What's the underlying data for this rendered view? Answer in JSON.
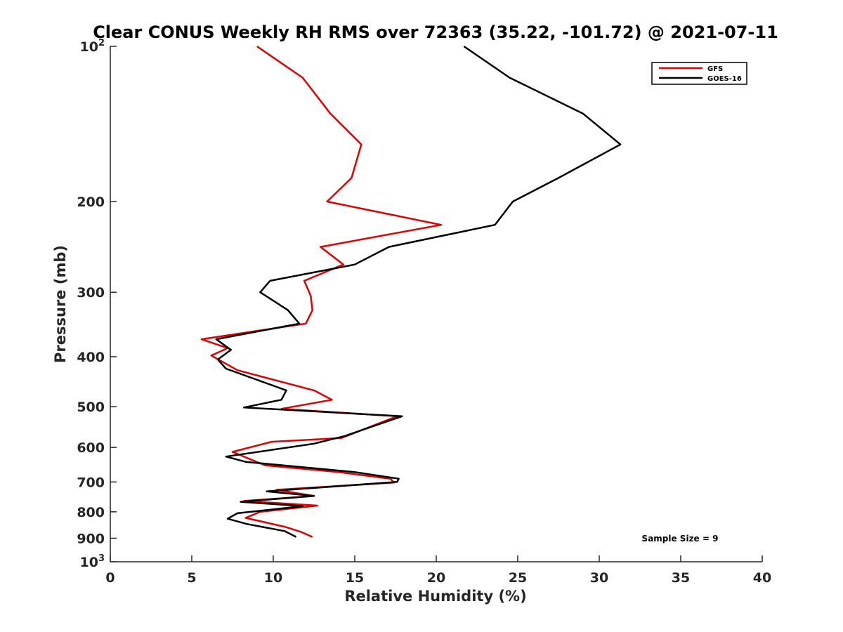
{
  "chart_data": {
    "type": "line",
    "title": "Clear CONUS Weekly RH RMS over 72363 (35.22, -101.72) @ 2021-07-11",
    "xlabel": "Relative Humidity (%)",
    "ylabel": "Pressure (mb)",
    "xlim": [
      0,
      40
    ],
    "ylim": [
      100,
      1000
    ],
    "y_scale": "log",
    "y_reversed": true,
    "x_ticks": [
      0,
      5,
      10,
      15,
      20,
      25,
      30,
      35,
      40
    ],
    "x_tick_labels": [
      "0",
      "5",
      "10",
      "15",
      "20",
      "25",
      "30",
      "35",
      "40"
    ],
    "y_ticks": [
      100,
      200,
      300,
      400,
      500,
      600,
      700,
      800,
      900,
      1000
    ],
    "y_tick_labels": [
      {
        "base": "10",
        "sup": "2"
      },
      {
        "base": "200",
        "sup": ""
      },
      {
        "base": "300",
        "sup": ""
      },
      {
        "base": "400",
        "sup": ""
      },
      {
        "base": "500",
        "sup": ""
      },
      {
        "base": "600",
        "sup": ""
      },
      {
        "base": "700",
        "sup": ""
      },
      {
        "base": "800",
        "sup": ""
      },
      {
        "base": "900",
        "sup": ""
      },
      {
        "base": "10",
        "sup": "3"
      }
    ],
    "grid": false,
    "legend_position": "top-right",
    "annotation": "Sample Size = 9",
    "series": [
      {
        "name": "GFS",
        "color": "#e00000",
        "points": [
          [
            9.0,
            100
          ],
          [
            11.8,
            115
          ],
          [
            13.5,
            135
          ],
          [
            15.4,
            155
          ],
          [
            14.8,
            180
          ],
          [
            13.3,
            200
          ],
          [
            20.3,
            222
          ],
          [
            12.9,
            245
          ],
          [
            14.3,
            265
          ],
          [
            11.9,
            285
          ],
          [
            12.3,
            305
          ],
          [
            12.4,
            325
          ],
          [
            12.0,
            345
          ],
          [
            5.6,
            370
          ],
          [
            7.2,
            385
          ],
          [
            6.2,
            398
          ],
          [
            7.8,
            425
          ],
          [
            12.5,
            465
          ],
          [
            13.6,
            485
          ],
          [
            10.5,
            505
          ],
          [
            17.6,
            522
          ],
          [
            14.2,
            575
          ],
          [
            13.0,
            578
          ],
          [
            9.9,
            585
          ],
          [
            7.5,
            612
          ],
          [
            9.5,
            650
          ],
          [
            14.0,
            670
          ],
          [
            17.2,
            690
          ],
          [
            17.4,
            702
          ],
          [
            10.2,
            725
          ],
          [
            12.5,
            745
          ],
          [
            8.2,
            762
          ],
          [
            12.7,
            778
          ],
          [
            9.2,
            800
          ],
          [
            8.3,
            822
          ],
          [
            10.7,
            855
          ],
          [
            11.7,
            875
          ],
          [
            12.4,
            895
          ]
        ]
      },
      {
        "name": "GOES-16",
        "color": "#000000",
        "points": [
          [
            21.7,
            100
          ],
          [
            24.5,
            115
          ],
          [
            29.0,
            135
          ],
          [
            31.3,
            155
          ],
          [
            27.5,
            180
          ],
          [
            24.7,
            200
          ],
          [
            23.6,
            222
          ],
          [
            17.1,
            245
          ],
          [
            15.0,
            265
          ],
          [
            9.8,
            285
          ],
          [
            9.2,
            300
          ],
          [
            10.9,
            325
          ],
          [
            11.6,
            345
          ],
          [
            6.5,
            370
          ],
          [
            7.4,
            388
          ],
          [
            6.6,
            405
          ],
          [
            7.1,
            422
          ],
          [
            10.8,
            465
          ],
          [
            10.5,
            485
          ],
          [
            8.2,
            502
          ],
          [
            17.9,
            522
          ],
          [
            14.4,
            570
          ],
          [
            12.5,
            590
          ],
          [
            7.1,
            625
          ],
          [
            8.3,
            640
          ],
          [
            15.0,
            670
          ],
          [
            17.7,
            690
          ],
          [
            17.6,
            700
          ],
          [
            9.6,
            730
          ],
          [
            12.5,
            745
          ],
          [
            8.0,
            765
          ],
          [
            11.8,
            780
          ],
          [
            7.8,
            805
          ],
          [
            7.2,
            825
          ],
          [
            8.4,
            845
          ],
          [
            10.7,
            872
          ],
          [
            11.4,
            895
          ]
        ]
      }
    ]
  }
}
